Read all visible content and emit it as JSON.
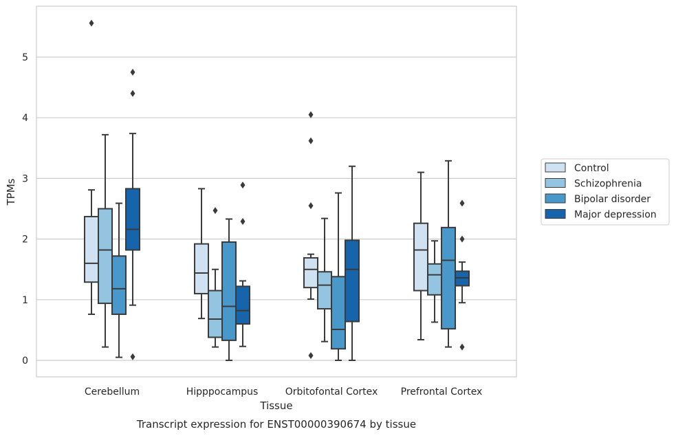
{
  "caption": "Transcript expression for ENST00000390674 by tissue",
  "chart_data": {
    "type": "box",
    "xlabel": "Tissue",
    "ylabel": "TPMs",
    "ylim": [
      -0.27,
      5.83
    ],
    "yticks": [
      0,
      1,
      2,
      3,
      4,
      5
    ],
    "grid": true,
    "legend_position": "right",
    "categories": [
      "Cerebellum",
      "Hipppocampus",
      "Orbitofontal Cortex",
      "Prefrontal Cortex"
    ],
    "series": [
      {
        "name": "Control",
        "color": "#d0e1f2",
        "boxes": [
          {
            "whisker_low": 0.76,
            "q1": 1.29,
            "median": 1.6,
            "q3": 2.37,
            "whisker_high": 2.81,
            "outliers": [
              5.56
            ]
          },
          {
            "whisker_low": 0.69,
            "q1": 1.1,
            "median": 1.44,
            "q3": 1.92,
            "whisker_high": 2.83,
            "outliers": []
          },
          {
            "whisker_low": 1.01,
            "q1": 1.2,
            "median": 1.5,
            "q3": 1.69,
            "whisker_high": 1.75,
            "outliers": [
              4.05,
              3.62,
              2.55,
              0.08
            ]
          },
          {
            "whisker_low": 0.34,
            "q1": 1.15,
            "median": 1.82,
            "q3": 2.26,
            "whisker_high": 3.1,
            "outliers": []
          }
        ]
      },
      {
        "name": "Schizophrenia",
        "color": "#94c4df",
        "boxes": [
          {
            "whisker_low": 0.22,
            "q1": 0.94,
            "median": 1.82,
            "q3": 2.5,
            "whisker_high": 3.72,
            "outliers": []
          },
          {
            "whisker_low": 0.22,
            "q1": 0.38,
            "median": 0.68,
            "q3": 1.15,
            "whisker_high": 1.5,
            "outliers": [
              2.47
            ]
          },
          {
            "whisker_low": 0.31,
            "q1": 0.85,
            "median": 1.24,
            "q3": 1.46,
            "whisker_high": 2.34,
            "outliers": []
          },
          {
            "whisker_low": 0.63,
            "q1": 1.08,
            "median": 1.41,
            "q3": 1.59,
            "whisker_high": 1.97,
            "outliers": []
          }
        ]
      },
      {
        "name": "Bipolar disorder",
        "color": "#4a98c9",
        "boxes": [
          {
            "whisker_low": 0.05,
            "q1": 0.76,
            "median": 1.18,
            "q3": 1.72,
            "whisker_high": 2.59,
            "outliers": []
          },
          {
            "whisker_low": 0.0,
            "q1": 0.33,
            "median": 0.89,
            "q3": 1.95,
            "whisker_high": 2.33,
            "outliers": []
          },
          {
            "whisker_low": 0.0,
            "q1": 0.19,
            "median": 0.51,
            "q3": 1.38,
            "whisker_high": 2.76,
            "outliers": []
          },
          {
            "whisker_low": 0.22,
            "q1": 0.52,
            "median": 1.65,
            "q3": 2.19,
            "whisker_high": 3.29,
            "outliers": []
          }
        ]
      },
      {
        "name": "Major depression",
        "color": "#1764ab",
        "boxes": [
          {
            "whisker_low": 0.91,
            "q1": 1.82,
            "median": 2.16,
            "q3": 2.83,
            "whisker_high": 3.74,
            "outliers": [
              4.75,
              4.4,
              0.06
            ]
          },
          {
            "whisker_low": 0.23,
            "q1": 0.6,
            "median": 0.82,
            "q3": 1.22,
            "whisker_high": 1.31,
            "outliers": [
              2.89,
              2.29
            ]
          },
          {
            "whisker_low": 0.0,
            "q1": 0.64,
            "median": 1.5,
            "q3": 1.98,
            "whisker_high": 3.2,
            "outliers": []
          },
          {
            "whisker_low": 0.95,
            "q1": 1.23,
            "median": 1.36,
            "q3": 1.47,
            "whisker_high": 1.62,
            "outliers": [
              2.59,
              2.0,
              0.22
            ]
          }
        ]
      }
    ]
  }
}
